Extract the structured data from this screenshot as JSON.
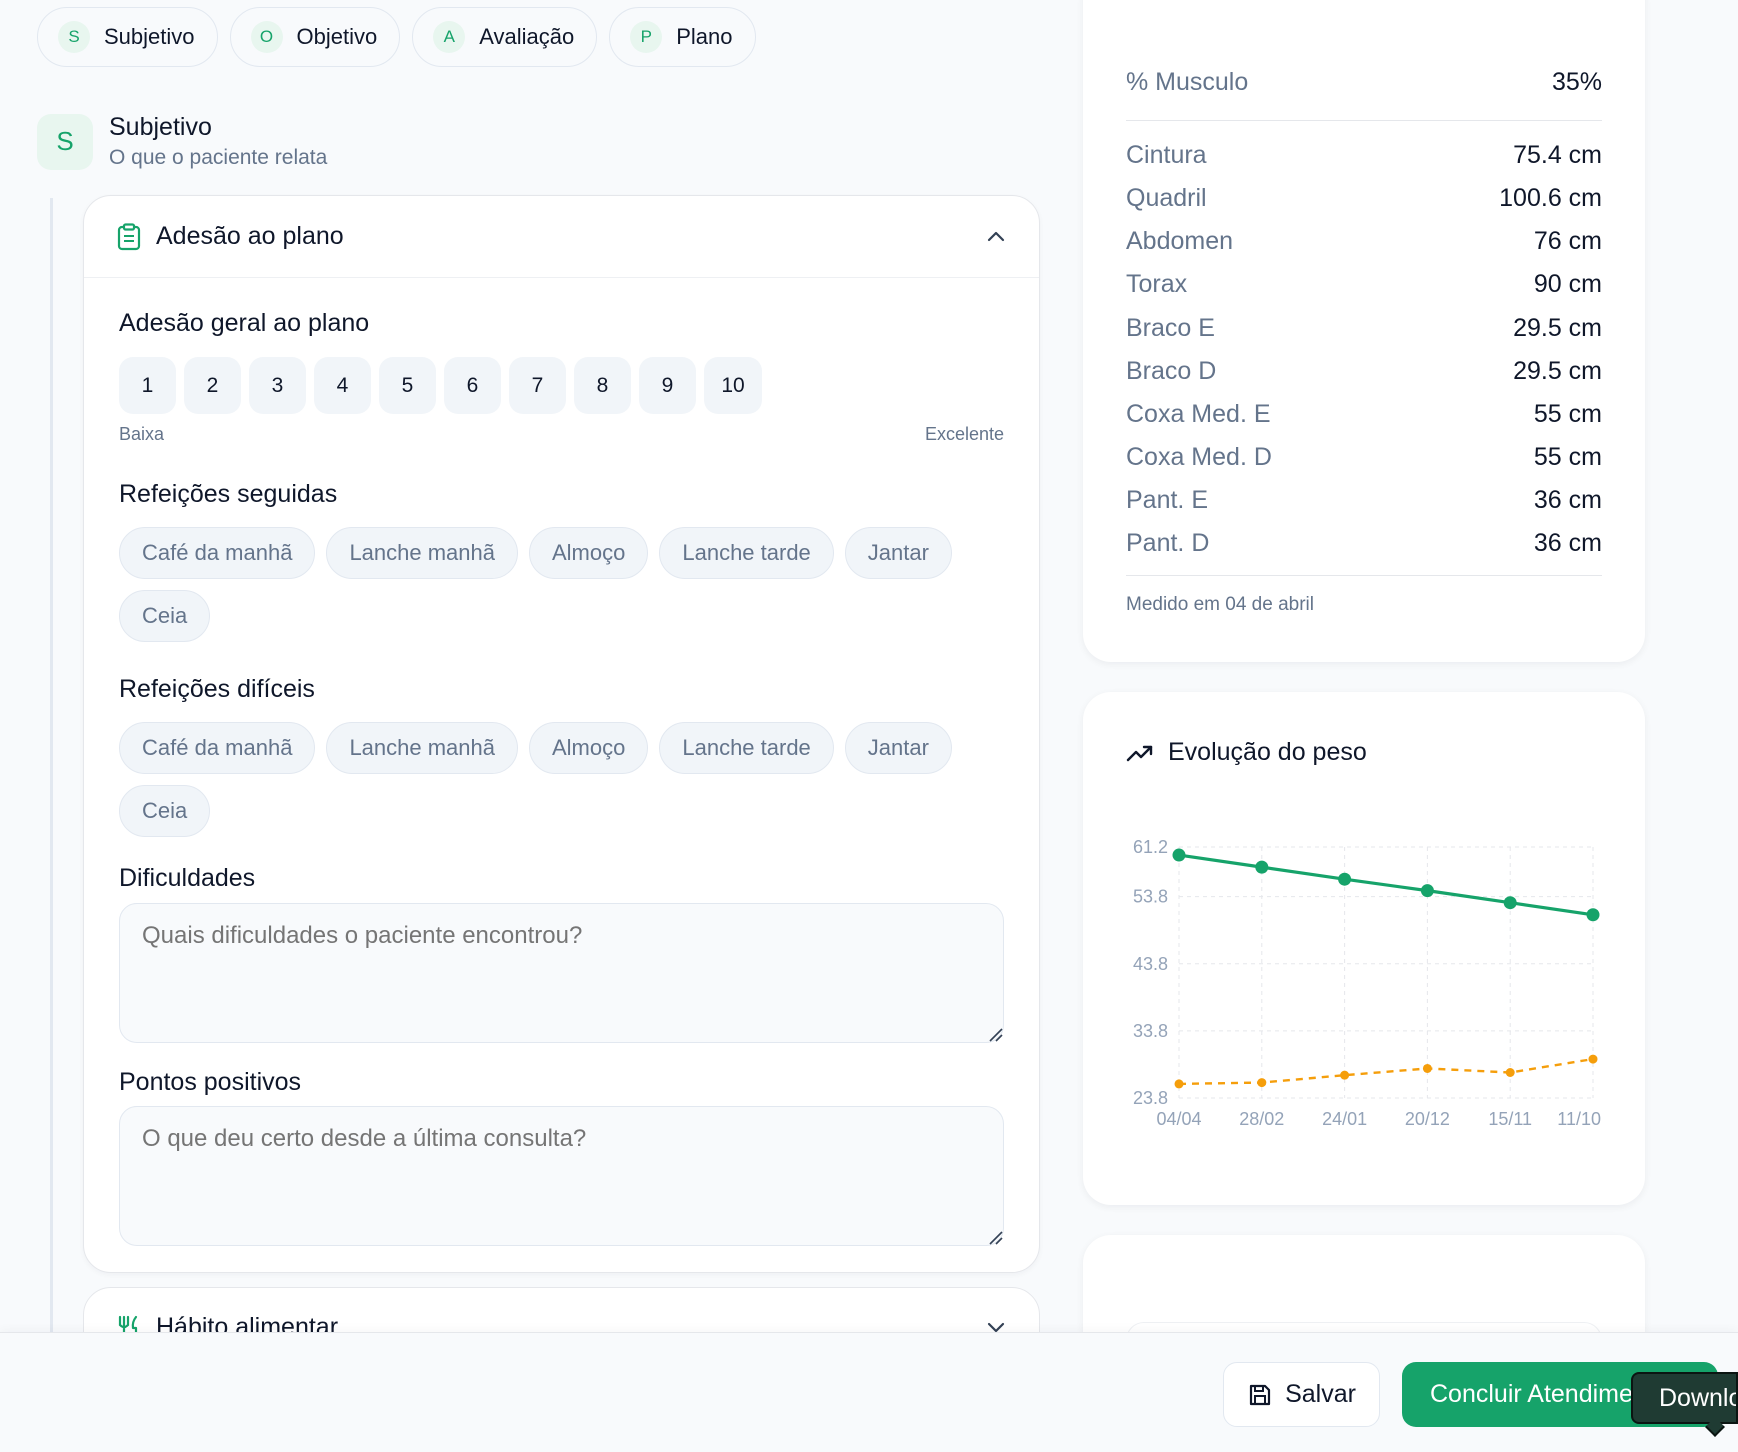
{
  "tabs": [
    {
      "letter": "S",
      "label": "Subjetivo"
    },
    {
      "letter": "O",
      "label": "Objetivo"
    },
    {
      "letter": "A",
      "label": "Avaliação"
    },
    {
      "letter": "P",
      "label": "Plano"
    }
  ],
  "section": {
    "avatar": "S",
    "title": "Subjetivo",
    "subtitle": "O que o paciente relata"
  },
  "adesao_card": {
    "title": "Adesão ao plano",
    "icon": "clipboard-icon",
    "general_label": "Adesão geral ao plano",
    "scale": [
      "1",
      "2",
      "3",
      "4",
      "5",
      "6",
      "7",
      "8",
      "9",
      "10"
    ],
    "scale_low": "Baixa",
    "scale_high": "Excelente",
    "followed_label": "Refeições seguidas",
    "followed_meals": [
      "Café da manhã",
      "Lanche manhã",
      "Almoço",
      "Lanche tarde",
      "Jantar",
      "Ceia"
    ],
    "difficult_label": "Refeições difíceis",
    "difficult_meals": [
      "Café da manhã",
      "Lanche manhã",
      "Almoço",
      "Lanche tarde",
      "Jantar",
      "Ceia"
    ],
    "difficulties_label": "Dificuldades",
    "difficulties_placeholder": "Quais dificuldades o paciente encontrou?",
    "positives_label": "Pontos positivos",
    "positives_placeholder": "O que deu certo desde a última consulta?"
  },
  "habito_card": {
    "title": "Hábito alimentar",
    "icon": "utensils-icon"
  },
  "measurements": {
    "rows": [
      {
        "label": "% Musculo",
        "value": "35%"
      },
      {
        "label": "Cintura",
        "value": "75.4 cm"
      },
      {
        "label": "Quadril",
        "value": "100.6 cm"
      },
      {
        "label": "Abdomen",
        "value": "76 cm"
      },
      {
        "label": "Torax",
        "value": "90 cm"
      },
      {
        "label": "Braco E",
        "value": "29.5 cm"
      },
      {
        "label": "Braco D",
        "value": "29.5 cm"
      },
      {
        "label": "Coxa Med. E",
        "value": "55 cm"
      },
      {
        "label": "Coxa Med. D",
        "value": "55 cm"
      },
      {
        "label": "Pant. E",
        "value": "36 cm"
      },
      {
        "label": "Pant. D",
        "value": "36 cm"
      }
    ],
    "footer": "Medido em 04 de abril"
  },
  "chart_data": {
    "type": "line",
    "title": "Evolução do peso",
    "categories": [
      "04/04",
      "28/02",
      "24/01",
      "20/12",
      "15/11",
      "11/10"
    ],
    "y_ticks": [
      "61.2",
      "53.8",
      "43.8",
      "33.8",
      "23.8"
    ],
    "ylim": [
      23.8,
      61.2
    ],
    "grid": true,
    "series": [
      {
        "values": [
          60.0,
          58.2,
          56.4,
          54.7,
          52.9,
          51.1
        ],
        "color": "#16a36a",
        "style": "solid"
      },
      {
        "values": [
          25.9,
          26.1,
          27.2,
          28.2,
          27.6,
          29.6
        ],
        "color": "#f59e0b",
        "style": "dashed"
      }
    ]
  },
  "actions": {
    "save_label": "Salvar",
    "finish_label": "Concluir Atendimento",
    "tooltip": "Download"
  },
  "colors": {
    "accent": "#16a36a",
    "accent_soft": "#e8f6ef",
    "secondary": "#f59e0b"
  }
}
